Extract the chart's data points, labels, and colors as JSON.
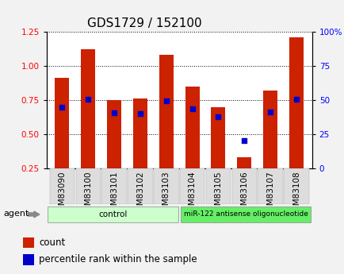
{
  "title": "GDS1729 / 152100",
  "samples": [
    "GSM83090",
    "GSM83100",
    "GSM83101",
    "GSM83102",
    "GSM83103",
    "GSM83104",
    "GSM83105",
    "GSM83106",
    "GSM83107",
    "GSM83108"
  ],
  "count_values": [
    0.91,
    1.12,
    0.75,
    0.76,
    1.08,
    0.85,
    0.7,
    0.33,
    0.82,
    1.21
  ],
  "percentile_values": [
    0.695,
    0.755,
    0.655,
    0.65,
    0.745,
    0.685,
    0.625,
    0.455,
    0.66,
    0.755
  ],
  "ylim_left": [
    0.25,
    1.25
  ],
  "ylim_right": [
    0,
    100
  ],
  "yticks_left": [
    0.25,
    0.5,
    0.75,
    1.0,
    1.25
  ],
  "yticks_right": [
    0,
    25,
    50,
    75,
    100
  ],
  "bar_color": "#CC2200",
  "dot_color": "#0000CC",
  "bar_width": 0.55,
  "group_ctrl_label": "control",
  "group_mir_label": "miR-122 antisense oligonucleotide",
  "group_ctrl_color": "#CCFFCC",
  "group_mir_color": "#66EE66",
  "agent_label": "agent",
  "legend_count_label": "count",
  "legend_percentile_label": "percentile rank within the sample",
  "grid_color": "black",
  "background_color": "#F2F2F2",
  "plot_bg": "#FFFFFF",
  "tick_label_bg": "#DDDDDD",
  "title_fontsize": 11,
  "tick_fontsize": 7.5,
  "label_fontsize": 8,
  "dot_size": 25
}
